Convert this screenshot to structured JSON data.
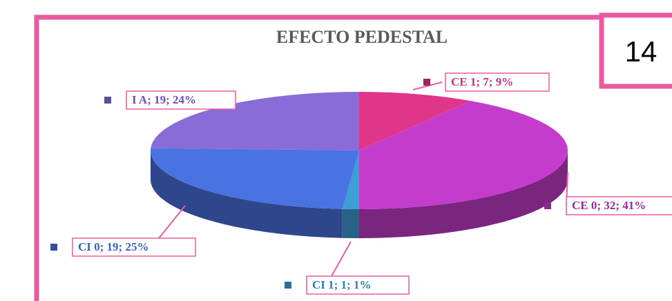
{
  "slide_number": "14",
  "chart_data": {
    "type": "pie",
    "title": "EFECTO PEDESTAL",
    "categories": [
      "CE 1",
      "CE 0",
      "CI 1",
      "CI 0",
      "I A"
    ],
    "values": [
      7,
      32,
      1,
      19,
      19
    ],
    "value_labels": [
      "CE 1; 7; 9%",
      "CE 0; 32; 41%",
      "CI 1; 1; 1%",
      "CI 0; 19; 25%",
      "I A; 19; 24%"
    ],
    "colors": [
      "#e0368a",
      "#c43ccb",
      "#3e9fd6",
      "#4a73e2",
      "#8a6cd9"
    ]
  }
}
